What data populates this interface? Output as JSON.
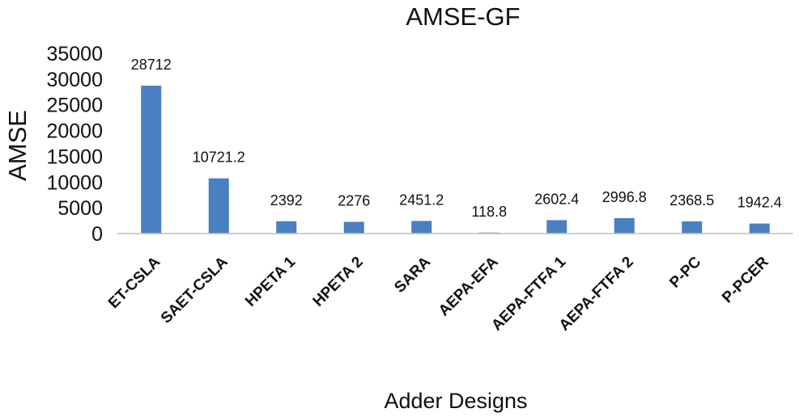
{
  "chart_data": {
    "type": "bar",
    "title": "AMSE-GF",
    "xlabel": "Adder Designs",
    "ylabel": "AMSE",
    "categories": [
      "ET-CSLA",
      "SAET-CSLA",
      "HPETA 1",
      "HPETA 2",
      "SARA",
      "AEPA-EFA",
      "AEPA-FTFA 1",
      "AEPA-FTFA 2",
      "P-PC",
      "P-PCER"
    ],
    "values": [
      28712,
      10721.2,
      2392,
      2276,
      2451.2,
      118.8,
      2602.4,
      2996.8,
      2368.5,
      1942.4
    ],
    "data_labels": [
      "28712",
      "10721.2",
      "2392",
      "2276",
      "2451.2",
      "118.8",
      "2602.4",
      "2996.8",
      "2368.5",
      "1942.4"
    ],
    "ylim": [
      0,
      35000
    ],
    "yticks": [
      0,
      5000,
      10000,
      15000,
      20000,
      25000,
      30000,
      35000
    ],
    "ytick_labels": [
      "0",
      "5000",
      "10000",
      "15000",
      "20000",
      "25000",
      "30000",
      "35000"
    ],
    "grid": false,
    "legend": "none",
    "colors": {
      "bar": "#4a7fc1",
      "axis": "#bfbfbf",
      "text": "#111111"
    }
  }
}
